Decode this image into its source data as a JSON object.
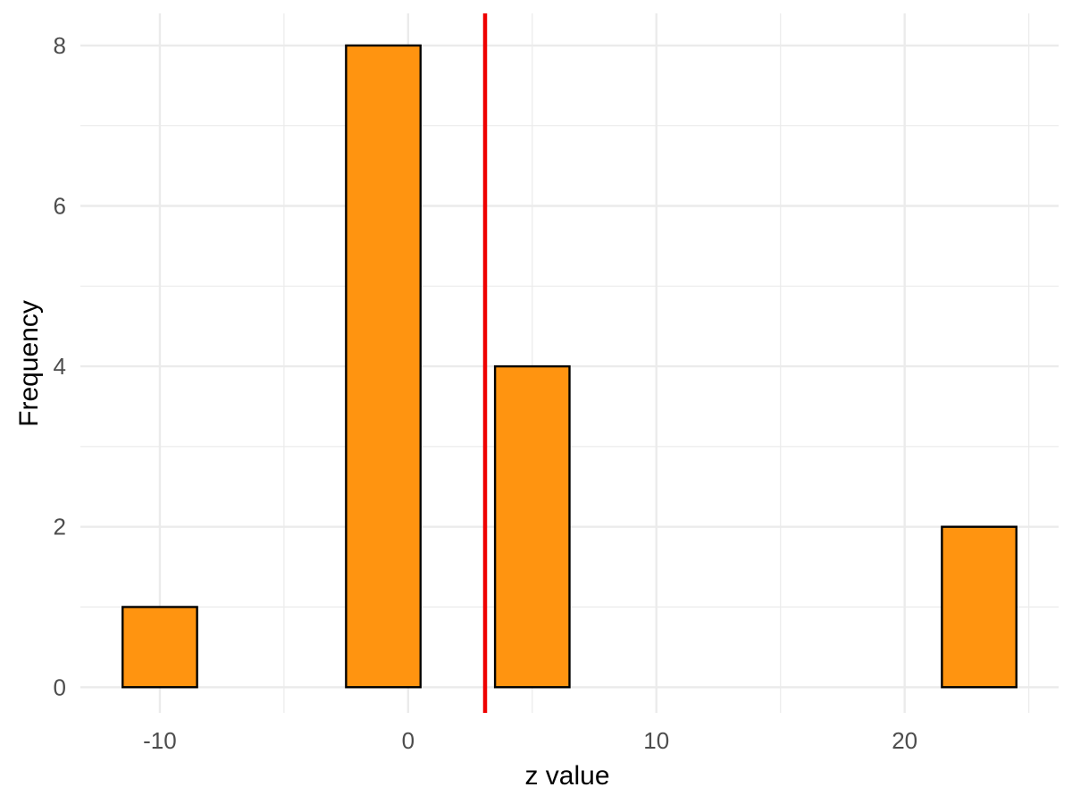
{
  "chart_data": {
    "type": "bar",
    "subtype": "histogram",
    "title": "",
    "xlabel": "z value",
    "ylabel": "Frequency",
    "xlim": [
      -13.2,
      26.2
    ],
    "ylim": [
      -0.32,
      8.4
    ],
    "x_ticks": [
      -10,
      0,
      10,
      20
    ],
    "x_tick_labels": [
      "-10",
      "0",
      "10",
      "20"
    ],
    "x_minor_ticks": [
      -5,
      5,
      15,
      25
    ],
    "y_ticks": [
      0,
      2,
      4,
      6,
      8
    ],
    "y_tick_labels": [
      "0",
      "2",
      "4",
      "6",
      "8"
    ],
    "y_minor_ticks": [
      1,
      3,
      5,
      7
    ],
    "bin_width": 3,
    "bins": [
      {
        "x0": -11.5,
        "x1": -8.5,
        "count": 1
      },
      {
        "x0": -8.5,
        "x1": -5.5,
        "count": 0
      },
      {
        "x0": -5.5,
        "x1": -2.5,
        "count": 0
      },
      {
        "x0": -2.5,
        "x1": 0.5,
        "count": 8
      },
      {
        "x0": 0.5,
        "x1": 3.5,
        "count": 0
      },
      {
        "x0": 3.5,
        "x1": 6.5,
        "count": 4
      },
      {
        "x0": 6.5,
        "x1": 9.5,
        "count": 0
      },
      {
        "x0": 9.5,
        "x1": 12.5,
        "count": 0
      },
      {
        "x0": 12.5,
        "x1": 15.5,
        "count": 0
      },
      {
        "x0": 15.5,
        "x1": 18.5,
        "count": 0
      },
      {
        "x0": 18.5,
        "x1": 21.5,
        "count": 0
      },
      {
        "x0": 21.5,
        "x1": 24.5,
        "count": 2
      }
    ],
    "vline": {
      "x": 3.1,
      "color": "#ee0000"
    },
    "bar_fill": "#ff9410",
    "bar_stroke": "#000000",
    "grid": true,
    "grid_color": "#ebebeb",
    "legend": "none"
  }
}
